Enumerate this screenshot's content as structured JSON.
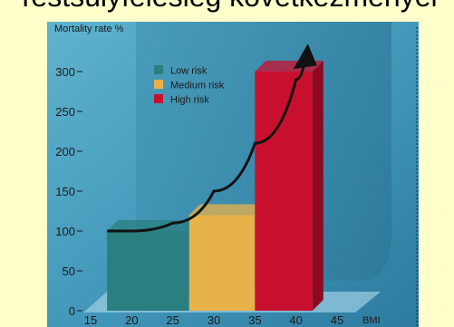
{
  "slide_title": "Testsúlyfelesleg következményei",
  "chart_data": {
    "type": "bar",
    "ylabel": "Mortality rate %",
    "xlabel": "BMI",
    "ylim": [
      0,
      330
    ],
    "yticks": [
      0,
      50,
      100,
      150,
      200,
      250,
      300
    ],
    "xlim": [
      15,
      45
    ],
    "xticks": [
      15,
      20,
      25,
      30,
      35,
      40,
      45
    ],
    "legend_position": "top-left",
    "series": [
      {
        "name": "Low risk",
        "color": "#2a7f80",
        "x_start": 17,
        "x_end": 27,
        "value": 100
      },
      {
        "name": "Medium risk",
        "color": "#e8b24a",
        "x_start": 27,
        "x_end": 35,
        "value": 120
      },
      {
        "name": "High risk",
        "color": "#c8102e",
        "x_start": 35,
        "x_end": 42,
        "value": 300
      }
    ],
    "curve": [
      [
        17,
        100
      ],
      [
        20,
        100
      ],
      [
        25,
        110
      ],
      [
        30,
        150
      ],
      [
        35,
        210
      ],
      [
        40,
        290
      ],
      [
        41,
        310
      ]
    ]
  }
}
